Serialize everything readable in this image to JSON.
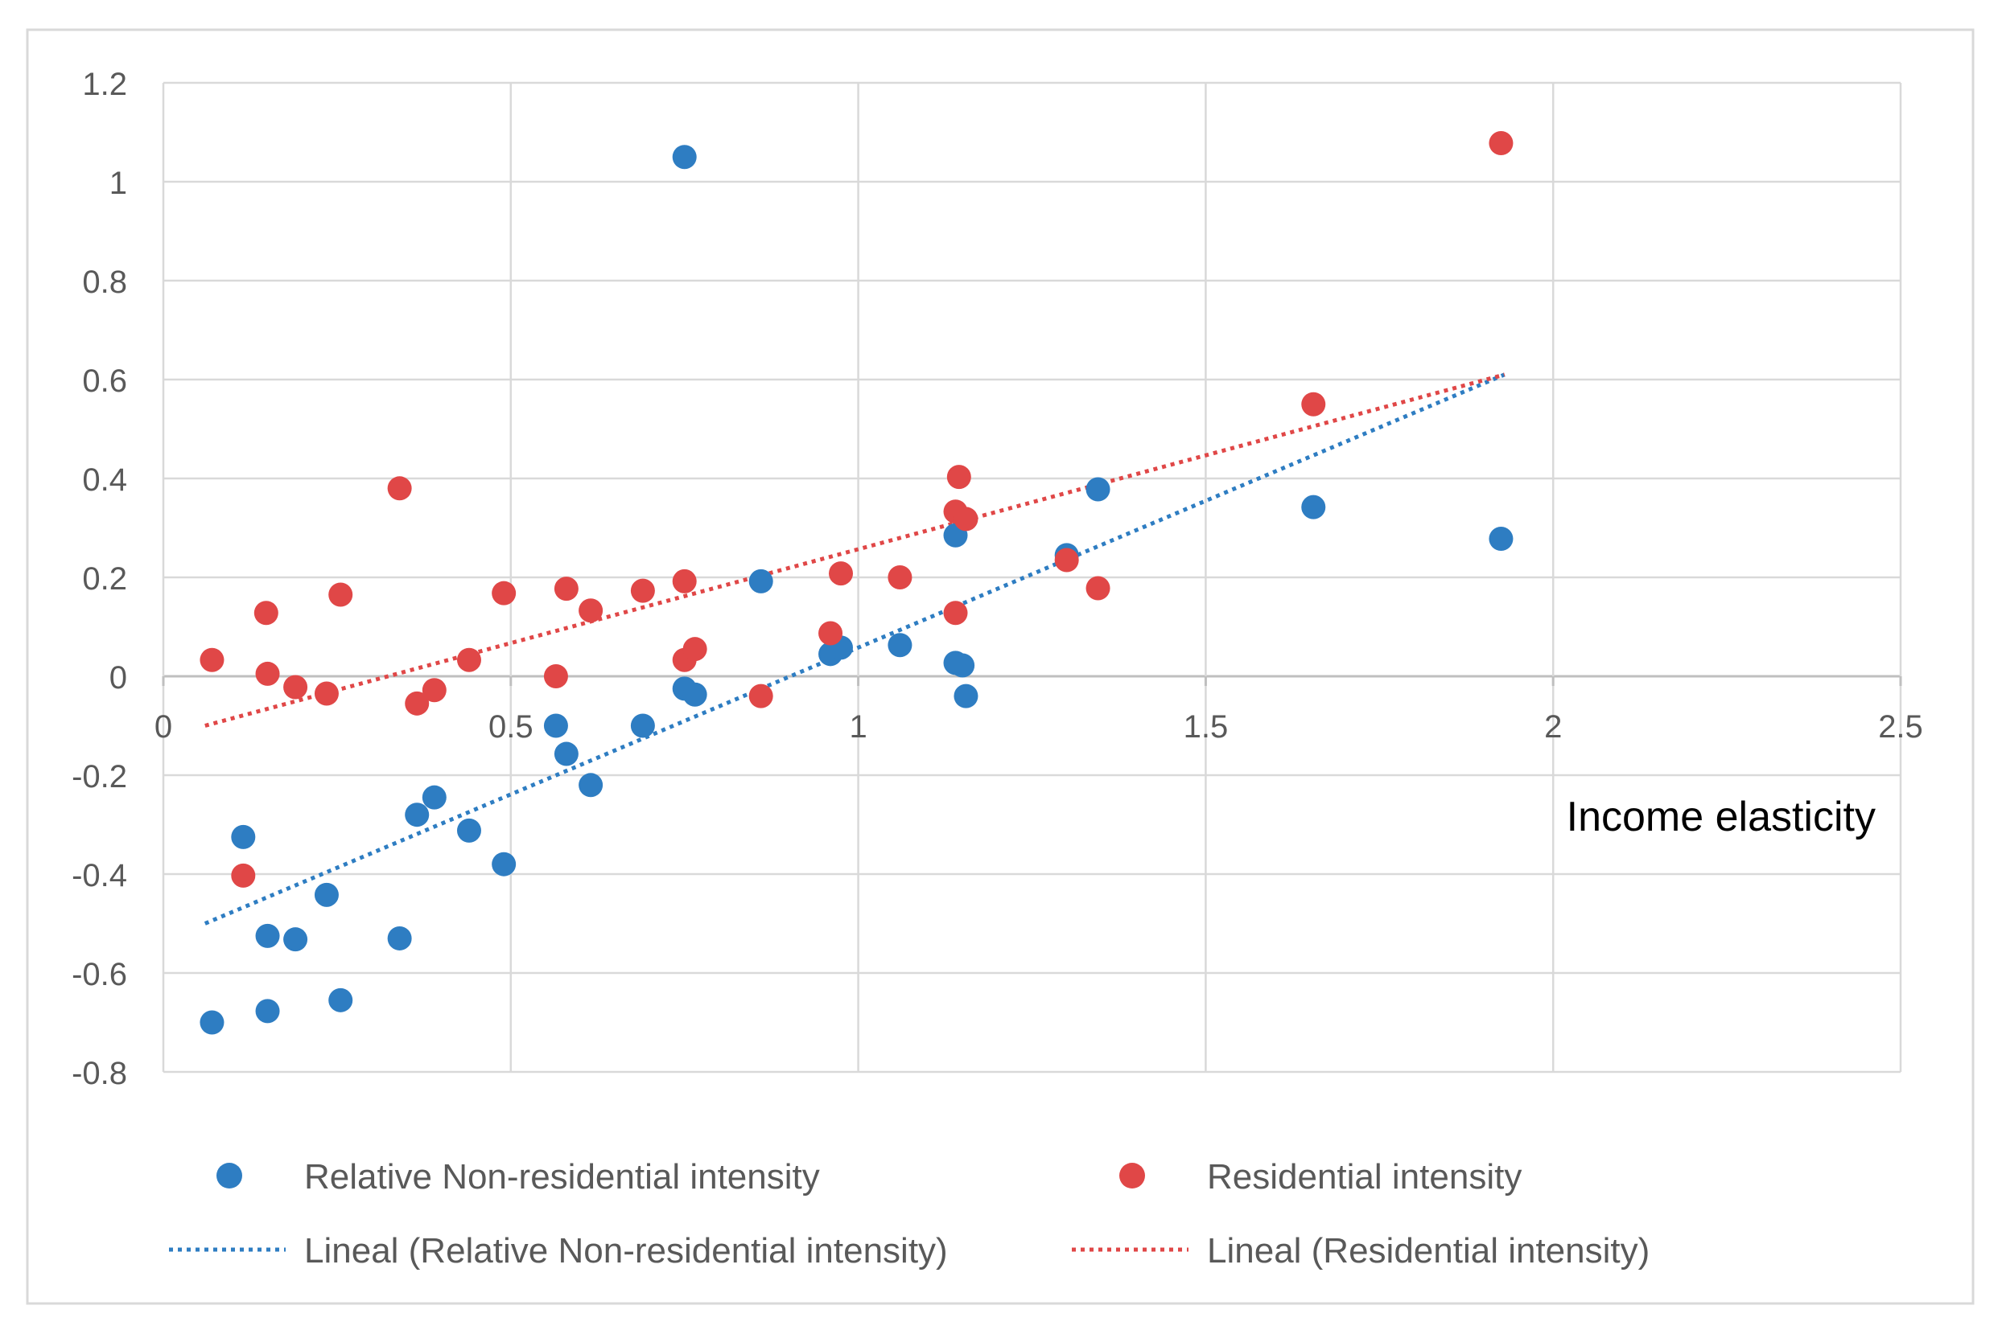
{
  "chart_data": {
    "type": "scatter",
    "title": "",
    "xlabel": "Income elasticity",
    "ylabel": "",
    "xlim": [
      0,
      2.5
    ],
    "ylim": [
      -0.8,
      1.2
    ],
    "x_ticks": [
      {
        "value": 0,
        "label": "0"
      },
      {
        "value": 0.5,
        "label": "0.5"
      },
      {
        "value": 1,
        "label": "1"
      },
      {
        "value": 1.5,
        "label": "1.5"
      },
      {
        "value": 2,
        "label": "2"
      },
      {
        "value": 2.5,
        "label": "2.5"
      }
    ],
    "y_ticks": [
      {
        "value": 1.2,
        "label": "1.2"
      },
      {
        "value": 1,
        "label": "1"
      },
      {
        "value": 0.8,
        "label": "0.8"
      },
      {
        "value": 0.6,
        "label": "0.6"
      },
      {
        "value": 0.4,
        "label": "0.4"
      },
      {
        "value": 0.2,
        "label": "0.2"
      },
      {
        "value": 0,
        "label": "0"
      },
      {
        "value": -0.2,
        "label": "-0.2"
      },
      {
        "value": -0.4,
        "label": "-0.4"
      },
      {
        "value": -0.6,
        "label": "-0.6"
      },
      {
        "value": -0.8,
        "label": "-0.8"
      }
    ],
    "grid": true,
    "legend_position": "bottom",
    "series": [
      {
        "name": "Relative Non-residential intensity",
        "color": "#2e7dc2",
        "points": [
          {
            "x": 0.07,
            "y": -0.7
          },
          {
            "x": 0.115,
            "y": -0.325
          },
          {
            "x": 0.15,
            "y": -0.677
          },
          {
            "x": 0.15,
            "y": -0.525
          },
          {
            "x": 0.19,
            "y": -0.532
          },
          {
            "x": 0.235,
            "y": -0.442
          },
          {
            "x": 0.255,
            "y": -0.655
          },
          {
            "x": 0.34,
            "y": -0.53
          },
          {
            "x": 0.365,
            "y": -0.28
          },
          {
            "x": 0.39,
            "y": -0.245
          },
          {
            "x": 0.44,
            "y": -0.312
          },
          {
            "x": 0.49,
            "y": -0.38
          },
          {
            "x": 0.565,
            "y": -0.1
          },
          {
            "x": 0.58,
            "y": -0.157
          },
          {
            "x": 0.615,
            "y": -0.22
          },
          {
            "x": 0.69,
            "y": -0.1
          },
          {
            "x": 0.75,
            "y": 1.05
          },
          {
            "x": 0.75,
            "y": -0.025
          },
          {
            "x": 0.765,
            "y": -0.037
          },
          {
            "x": 0.86,
            "y": 0.192
          },
          {
            "x": 0.96,
            "y": 0.045
          },
          {
            "x": 0.975,
            "y": 0.058
          },
          {
            "x": 1.06,
            "y": 0.063
          },
          {
            "x": 1.14,
            "y": 0.027
          },
          {
            "x": 1.15,
            "y": 0.022
          },
          {
            "x": 1.14,
            "y": 0.285
          },
          {
            "x": 1.155,
            "y": -0.04
          },
          {
            "x": 1.3,
            "y": 0.245
          },
          {
            "x": 1.345,
            "y": 0.378
          },
          {
            "x": 1.655,
            "y": 0.342
          },
          {
            "x": 1.925,
            "y": 0.278
          }
        ],
        "trendline": {
          "name": "Lineal (Relative Non-residential intensity)",
          "from": {
            "x": 0.06,
            "y": -0.5
          },
          "to": {
            "x": 1.93,
            "y": 0.61
          }
        }
      },
      {
        "name": "Residential intensity",
        "color": "#e04747",
        "points": [
          {
            "x": 0.07,
            "y": 0.033
          },
          {
            "x": 0.115,
            "y": -0.403
          },
          {
            "x": 0.148,
            "y": 0.128
          },
          {
            "x": 0.15,
            "y": 0.005
          },
          {
            "x": 0.19,
            "y": -0.022
          },
          {
            "x": 0.235,
            "y": -0.035
          },
          {
            "x": 0.255,
            "y": 0.165
          },
          {
            "x": 0.34,
            "y": 0.38
          },
          {
            "x": 0.365,
            "y": -0.055
          },
          {
            "x": 0.39,
            "y": -0.028
          },
          {
            "x": 0.44,
            "y": 0.033
          },
          {
            "x": 0.49,
            "y": 0.168
          },
          {
            "x": 0.565,
            "y": 0.0
          },
          {
            "x": 0.58,
            "y": 0.177
          },
          {
            "x": 0.615,
            "y": 0.133
          },
          {
            "x": 0.69,
            "y": 0.173
          },
          {
            "x": 0.75,
            "y": 0.192
          },
          {
            "x": 0.75,
            "y": 0.033
          },
          {
            "x": 0.765,
            "y": 0.055
          },
          {
            "x": 0.86,
            "y": -0.04
          },
          {
            "x": 0.96,
            "y": 0.087
          },
          {
            "x": 0.975,
            "y": 0.208
          },
          {
            "x": 1.06,
            "y": 0.2
          },
          {
            "x": 1.14,
            "y": 0.128
          },
          {
            "x": 1.145,
            "y": 0.403
          },
          {
            "x": 1.14,
            "y": 0.333
          },
          {
            "x": 1.155,
            "y": 0.318
          },
          {
            "x": 1.3,
            "y": 0.235
          },
          {
            "x": 1.345,
            "y": 0.178
          },
          {
            "x": 1.655,
            "y": 0.55
          },
          {
            "x": 1.925,
            "y": 1.078
          }
        ],
        "trendline": {
          "name": "Lineal (Residential intensity)",
          "from": {
            "x": 0.06,
            "y": -0.1
          },
          "to": {
            "x": 1.93,
            "y": 0.61
          }
        }
      }
    ]
  }
}
